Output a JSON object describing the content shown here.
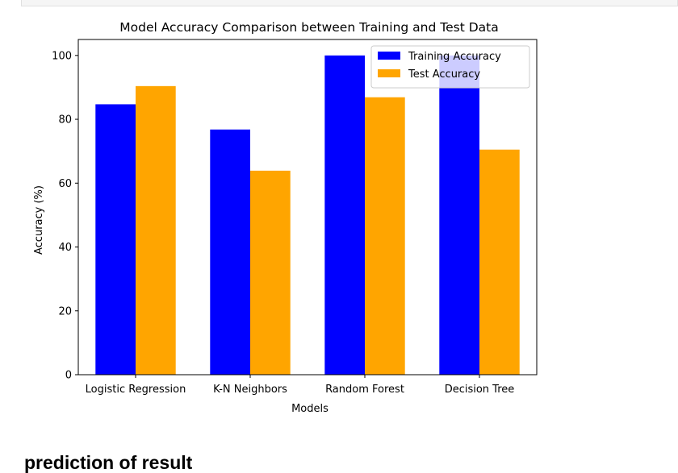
{
  "chart_data": {
    "type": "bar",
    "title": "Model Accuracy Comparison between Training and Test Data",
    "xlabel": "Models",
    "ylabel": "Accuracy (%)",
    "categories": [
      "Logistic Regression",
      "K-N Neighbors",
      "Random Forest",
      "Decision Tree"
    ],
    "series": [
      {
        "name": "Training Accuracy",
        "color": "#0000ff",
        "values": [
          84.7,
          76.8,
          100.0,
          100.0
        ]
      },
      {
        "name": "Test Accuracy",
        "color": "#ffa500",
        "values": [
          90.4,
          63.9,
          86.9,
          70.5
        ]
      }
    ],
    "ylim": [
      0,
      105
    ],
    "yticks": [
      0,
      20,
      40,
      60,
      80,
      100
    ],
    "grid": false,
    "legend_position": "top-right"
  },
  "notebook": {
    "section_heading": "prediction of result"
  }
}
